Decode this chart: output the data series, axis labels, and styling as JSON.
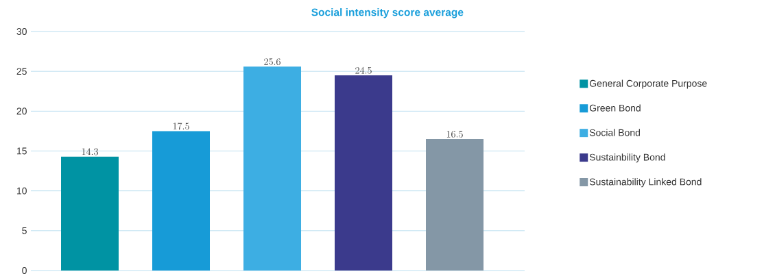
{
  "chart_data": {
    "type": "bar",
    "title": "Social intensity score average",
    "categories": [
      null
    ],
    "series": [
      {
        "name": "General Corporate Purpose",
        "color": "#0093a3",
        "values": [
          14.3
        ]
      },
      {
        "name": "Green Bond",
        "color": "#179bd7",
        "values": [
          17.5
        ]
      },
      {
        "name": "Social Bond",
        "color": "#3daee3",
        "values": [
          25.6
        ]
      },
      {
        "name": "Sustainbility Bond",
        "color": "#3b3a8c",
        "values": [
          24.5
        ]
      },
      {
        "name": "Sustainability Linked Bond",
        "color": "#8497a6",
        "values": [
          16.5
        ]
      }
    ],
    "ylim": [
      0,
      30
    ],
    "yticks": [
      0,
      5,
      10,
      15,
      20,
      25,
      30
    ],
    "grid": "y",
    "legend": "right",
    "data_labels": true
  }
}
